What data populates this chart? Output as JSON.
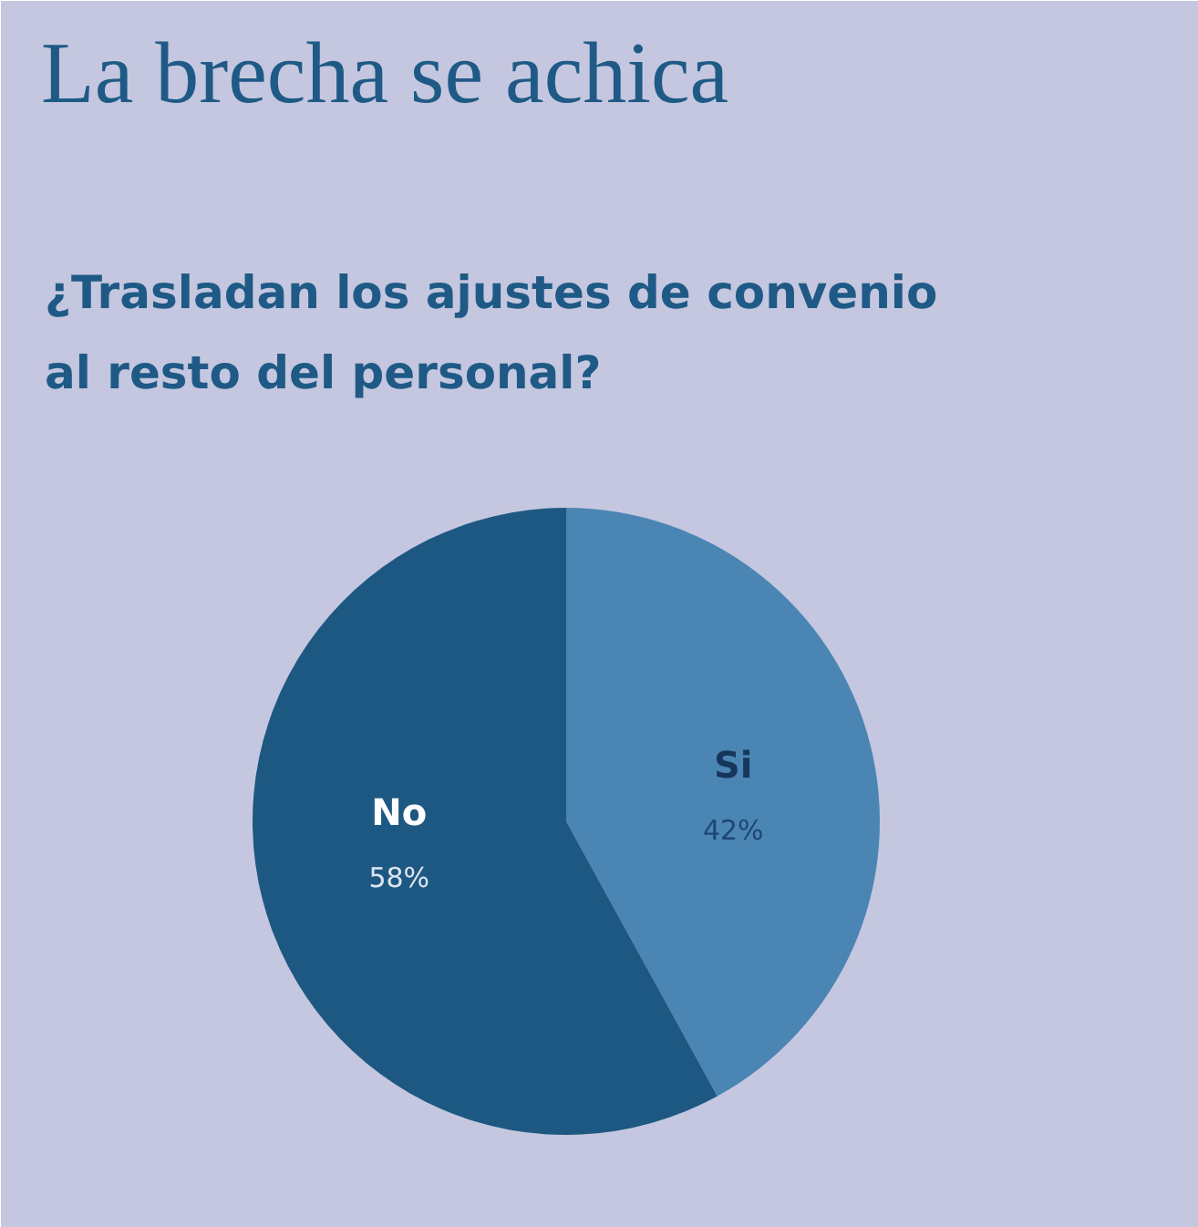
{
  "chart_data": {
    "type": "pie",
    "title": "La brecha se achica",
    "subtitle": "¿Trasladan los ajustes de convenio\nal resto del personal?",
    "categories": [
      "Si",
      "No"
    ],
    "values": [
      42,
      58
    ],
    "colors": [
      "#4a85b4",
      "#1d5882"
    ],
    "value_labels": [
      "42%",
      "58%"
    ]
  }
}
